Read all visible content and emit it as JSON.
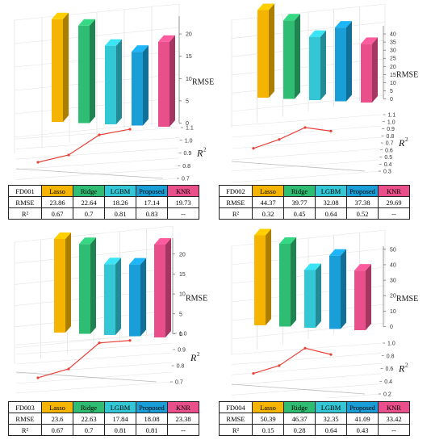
{
  "models": [
    "Lasso",
    "Ridge",
    "LGBM",
    "Proposed",
    "KNR"
  ],
  "colors": {
    "Lasso": "#f4b400",
    "Ridge": "#2ebd72",
    "LGBM": "#33c7d6",
    "Proposed": "#1a9ed8",
    "KNR": "#e94f8a",
    "line": "#e8423a"
  },
  "labels": {
    "rmse": "RMSE",
    "r2_axis": "R",
    "r2_sup": "2",
    "r2_row": "R²"
  },
  "chart_data": [
    {
      "type": "bar",
      "dataset": "FD001",
      "categories": [
        "Lasso",
        "Ridge",
        "LGBM",
        "Proposed",
        "KNR"
      ],
      "rmse": [
        23.86,
        22.64,
        18.26,
        17.14,
        19.73
      ],
      "r2": [
        0.67,
        0.7,
        0.81,
        0.83,
        null
      ],
      "rmse_table": [
        "23.86",
        "22.64",
        "18.26",
        "17.14",
        "19.73"
      ],
      "r2_table": [
        "0.67",
        "0.7",
        "0.81",
        "0.83",
        "--"
      ],
      "rmse_ticks": [
        "0",
        "5",
        "10",
        "15",
        "20"
      ],
      "rmse_max": 24,
      "r2_ticks": [
        "0.7",
        "0.8",
        "0.9",
        "1.0",
        "1.1"
      ],
      "r2_lim": [
        0.7,
        1.1
      ]
    },
    {
      "type": "bar",
      "dataset": "FD002",
      "categories": [
        "Lasso",
        "Ridge",
        "LGBM",
        "Proposed",
        "KNR"
      ],
      "rmse": [
        44.37,
        39.77,
        32.08,
        37.38,
        29.69
      ],
      "r2": [
        0.32,
        0.45,
        0.64,
        0.52,
        null
      ],
      "rmse_table": [
        "44.37",
        "39.77",
        "32.08",
        "37.38",
        "29.69"
      ],
      "r2_table": [
        "0.32",
        "0.45",
        "0.64",
        "0.52",
        "--"
      ],
      "rmse_ticks": [
        "0",
        "5",
        "10",
        "15",
        "20",
        "25",
        "30",
        "35",
        "40"
      ],
      "rmse_max": 45,
      "r2_ticks": [
        "0.3",
        "0.4",
        "0.5",
        "0.6",
        "0.7",
        "0.8",
        "0.9",
        "1.0",
        "1.1"
      ],
      "r2_lim": [
        0.3,
        1.1
      ]
    },
    {
      "type": "bar",
      "dataset": "FD003",
      "categories": [
        "Lasso",
        "Ridge",
        "LGBM",
        "Proposed",
        "KNR"
      ],
      "rmse": [
        23.6,
        22.63,
        17.84,
        18.08,
        23.38
      ],
      "r2": [
        0.67,
        0.7,
        0.81,
        0.81,
        null
      ],
      "rmse_table": [
        "23.6",
        "22.63",
        "17.84",
        "18.08",
        "23.38"
      ],
      "r2_table": [
        "0.67",
        "0.7",
        "0.81",
        "0.81",
        "--"
      ],
      "rmse_ticks": [
        "0",
        "5",
        "10",
        "15",
        "20"
      ],
      "rmse_max": 24,
      "r2_ticks": [
        "0.7",
        "0.8",
        "0.9",
        "1.0"
      ],
      "r2_lim": [
        0.7,
        1.0
      ]
    },
    {
      "type": "bar",
      "dataset": "FD004",
      "categories": [
        "Lasso",
        "Ridge",
        "LGBM",
        "Proposed",
        "KNR"
      ],
      "rmse": [
        50.39,
        46.37,
        32.35,
        41.09,
        33.42
      ],
      "r2": [
        0.15,
        0.28,
        0.64,
        0.43,
        null
      ],
      "rmse_table": [
        "50.39",
        "46.37",
        "32.35",
        "41.09",
        "33.42"
      ],
      "r2_table": [
        "0.15",
        "0.28",
        "0.64",
        "0.43",
        "--"
      ],
      "rmse_ticks": [
        "0",
        "10",
        "20",
        "30",
        "40",
        "50"
      ],
      "rmse_max": 52,
      "r2_ticks": [
        "0.2",
        "0.4",
        "0.6",
        "0.8",
        "1.0"
      ],
      "r2_lim": [
        0.2,
        1.0
      ]
    }
  ]
}
